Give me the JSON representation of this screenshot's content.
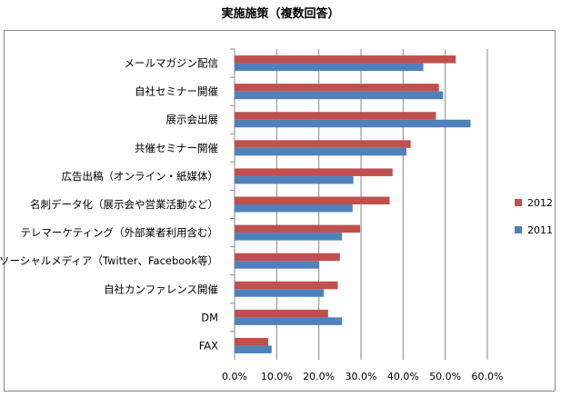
{
  "chart_data": {
    "type": "bar",
    "orientation": "horizontal",
    "title": "実施施策（複数回答）",
    "categories": [
      "メールマガジン配信",
      "自社セミナー開催",
      "展示会出展",
      "共催セミナー開催",
      "広告出稿（オンライン・紙媒体）",
      "名刺データ化（展示会や営業活動など）",
      "テレマーケティング（外部業者利用含む）",
      "ソーシャルメディア（Twitter、Facebook等）",
      "自社カンファレンス開催",
      "DM",
      "FAX"
    ],
    "series": [
      {
        "name": "2012",
        "color": "#c0504d",
        "values": [
          52.5,
          48.5,
          47.8,
          41.8,
          37.5,
          36.8,
          29.8,
          25.0,
          24.5,
          22.2,
          8.0
        ]
      },
      {
        "name": "2011",
        "color": "#4f81bd",
        "values": [
          44.8,
          49.5,
          56.0,
          40.8,
          28.2,
          28.0,
          25.5,
          20.0,
          21.2,
          25.5,
          8.8
        ]
      }
    ],
    "xlim": [
      0,
      60
    ],
    "xticks": [
      "0.0%",
      "10.0%",
      "20.0%",
      "30.0%",
      "40.0%",
      "50.0%",
      "60.0%"
    ],
    "grid": true,
    "legend_position": "right"
  }
}
